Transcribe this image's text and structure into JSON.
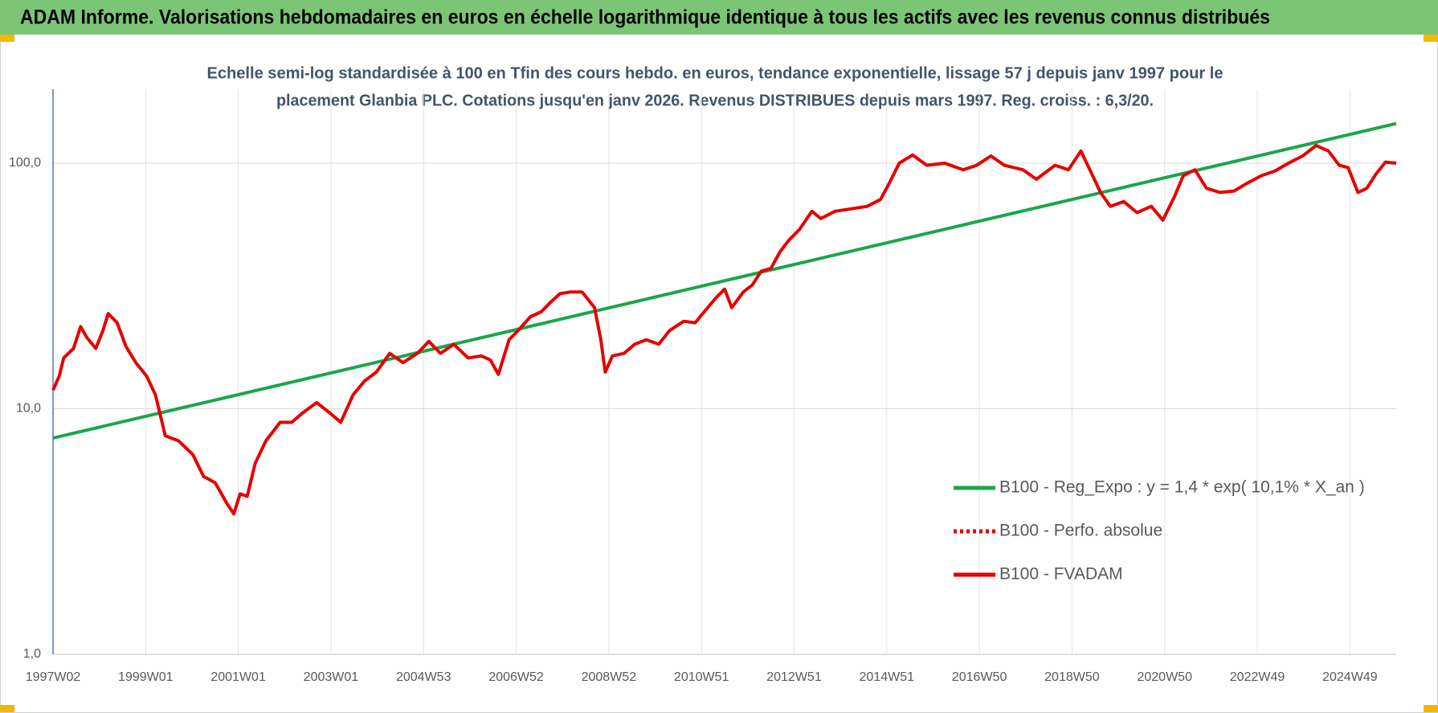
{
  "chart_data": {
    "type": "line",
    "title": "ADAM Informe. Valorisations hebdomadaires en euros en échelle logarithmique identique à tous les actifs avec les revenus connus distribués",
    "subtitle": [
      "Echelle semi-log standardisée à 100 en Tfin des cours hebdo. en euros, tendance exponentielle, lissage 57 j depuis janv 1997 pour le",
      "placement Glanbia PLC. Cotations jusqu'en janv 2026.  Revenus DISTRIBUES depuis mars 1997. Reg. croiss. : 6,3/20."
    ],
    "log_scale": true,
    "grid": true,
    "legend": "lower right",
    "xlim": [
      0,
      1508
    ],
    "xticks": [
      {
        "value": 0,
        "label": "1997W02"
      },
      {
        "value": 104,
        "label": "1999W01"
      },
      {
        "value": 208,
        "label": "2001W01"
      },
      {
        "value": 312,
        "label": "2003W01"
      },
      {
        "value": 416,
        "label": "2004W53"
      },
      {
        "value": 520,
        "label": "2006W52"
      },
      {
        "value": 624,
        "label": "2008W52"
      },
      {
        "value": 728,
        "label": "2010W51"
      },
      {
        "value": 832,
        "label": "2012W51"
      },
      {
        "value": 936,
        "label": "2014W51"
      },
      {
        "value": 1040,
        "label": "2016W50"
      },
      {
        "value": 1144,
        "label": "2018W50"
      },
      {
        "value": 1248,
        "label": "2020W50"
      },
      {
        "value": 1352,
        "label": "2022W49"
      },
      {
        "value": 1456,
        "label": "2024W49"
      }
    ],
    "ylim": [
      1,
      200
    ],
    "yticks": [
      {
        "value": 1,
        "label": "1,0"
      },
      {
        "value": 10,
        "label": "10,0"
      },
      {
        "value": 100,
        "label": "100,0"
      }
    ],
    "series": [
      {
        "name": "B100 - Reg_Expo : y = 1,4 * exp( 10,1% *  X_an )",
        "color": "#1aa64a",
        "dash": "solid",
        "x": [
          0,
          1508
        ],
        "values": [
          7.6,
          145
        ]
      },
      {
        "name": "B100 - Perfo. absolue",
        "color": "#e00000",
        "dash": "dotted",
        "x": [],
        "values": []
      },
      {
        "name": "B100 - FVADAM",
        "color": "#e60000",
        "dash": "solid",
        "x": [
          0,
          7,
          12,
          23,
          31,
          38,
          48,
          56,
          62,
          72,
          82,
          93,
          105,
          115,
          126,
          141,
          157,
          169,
          182,
          196,
          203,
          210,
          218,
          227,
          239,
          255,
          268,
          280,
          296,
          311,
          323,
          337,
          350,
          363,
          378,
          393,
          409,
          422,
          435,
          450,
          466,
          481,
          491,
          500,
          512,
          522,
          536,
          548,
          558,
          569,
          581,
          594,
          608,
          615,
          620,
          628,
          641,
          653,
          666,
          680,
          692,
          708,
          721,
          731,
          744,
          754,
          762,
          775,
          785,
          795,
          806,
          816,
          826,
          838,
          852,
          862,
          878,
          893,
          914,
          929,
          939,
          950,
          965,
          981,
          1001,
          1022,
          1037,
          1053,
          1068,
          1089,
          1104,
          1125,
          1140,
          1154,
          1164,
          1176,
          1187,
          1202,
          1217,
          1233,
          1246,
          1259,
          1269,
          1282,
          1295,
          1310,
          1326,
          1341,
          1357,
          1372,
          1387,
          1403,
          1418,
          1432,
          1444,
          1454,
          1465,
          1475,
          1485,
          1496,
          1508
        ],
        "values": [
          11.9,
          13.6,
          16.1,
          17.6,
          21.6,
          19.5,
          17.6,
          20.8,
          24.4,
          22.4,
          17.9,
          15.4,
          13.6,
          11.4,
          7.76,
          7.4,
          6.5,
          5.3,
          5.0,
          4.07,
          3.73,
          4.5,
          4.4,
          6.0,
          7.4,
          8.8,
          8.8,
          9.6,
          10.6,
          9.6,
          8.8,
          11.4,
          13.0,
          14.1,
          16.8,
          15.4,
          16.8,
          18.8,
          16.8,
          18.3,
          16.1,
          16.4,
          15.8,
          13.8,
          19.1,
          20.8,
          23.7,
          24.8,
          27.0,
          29.4,
          29.9,
          29.9,
          25.8,
          19.1,
          14.1,
          16.4,
          16.8,
          18.3,
          19.1,
          18.3,
          20.8,
          22.7,
          22.4,
          24.8,
          28.2,
          30.7,
          25.8,
          29.9,
          31.9,
          36.3,
          37.3,
          43.4,
          48.5,
          53.7,
          63.7,
          59.5,
          63.7,
          64.9,
          66.7,
          71.1,
          83,
          100,
          108,
          98,
          100,
          94,
          98,
          107,
          98,
          94,
          86,
          98,
          94,
          112,
          94,
          76,
          66.7,
          69.8,
          62.9,
          66.7,
          58.6,
          73,
          89,
          94,
          79,
          76,
          77,
          83,
          89,
          93,
          100,
          107,
          118,
          112,
          98,
          96,
          76,
          79,
          90,
          101,
          100
        ]
      }
    ]
  }
}
